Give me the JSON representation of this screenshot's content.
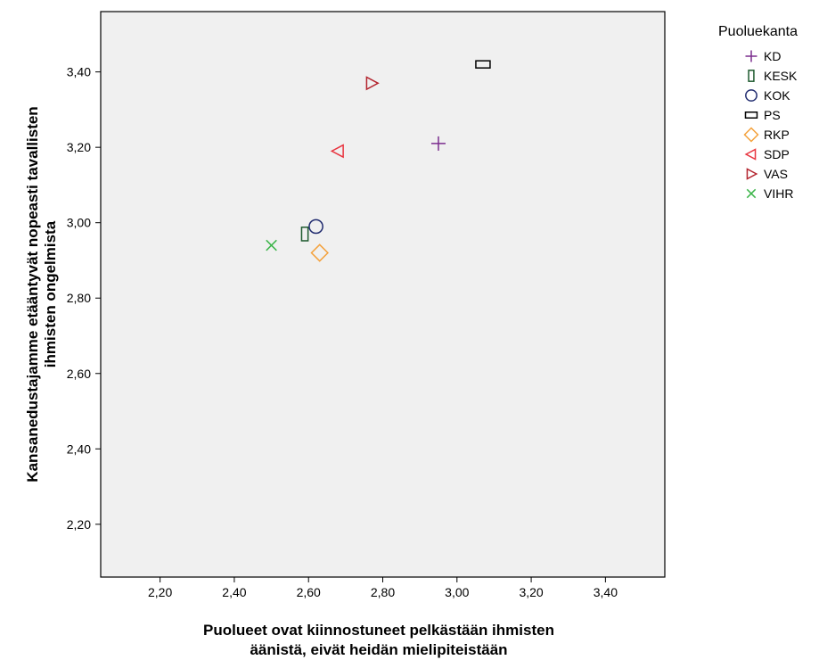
{
  "chart_data": {
    "type": "scatter",
    "xlabel": [
      "Puolueet ovat kiinnostuneet pelkästään ihmisten",
      "äänistä, eivät heidän mielipiteistään"
    ],
    "ylabel": [
      "Kansanedustajamme etääntyvät nopeasti tavallisten",
      "ihmisten ongelmista"
    ],
    "xlim": [
      2.04,
      3.56
    ],
    "ylim": [
      2.06,
      3.56
    ],
    "xticks": [
      2.2,
      2.4,
      2.6,
      2.8,
      3.0,
      3.2,
      3.4
    ],
    "xtick_labels": [
      "2,20",
      "2,40",
      "2,60",
      "2,80",
      "3,00",
      "3,20",
      "3,40"
    ],
    "yticks": [
      2.2,
      2.4,
      2.6,
      2.8,
      3.0,
      3.2,
      3.4
    ],
    "ytick_labels": [
      "2,20",
      "2,40",
      "2,60",
      "2,80",
      "3,00",
      "3,20",
      "3,40"
    ],
    "grid": false,
    "plot_background": "#f0f0f0",
    "legend": {
      "title": "Puoluekanta",
      "placement": "right"
    },
    "series": [
      {
        "name": "KD",
        "marker": "plus",
        "color": "#7b2d8e",
        "x": 2.95,
        "y": 3.21
      },
      {
        "name": "KESK",
        "marker": "tall-rect",
        "color": "#1e5a2e",
        "x": 2.59,
        "y": 2.97
      },
      {
        "name": "KOK",
        "marker": "circle",
        "color": "#1f2a6e",
        "x": 2.62,
        "y": 2.99
      },
      {
        "name": "PS",
        "marker": "wide-rect",
        "color": "#000000",
        "x": 3.07,
        "y": 3.42
      },
      {
        "name": "RKP",
        "marker": "diamond",
        "color": "#f4a13b",
        "x": 2.63,
        "y": 2.92
      },
      {
        "name": "SDP",
        "marker": "triangle-left",
        "color": "#e8343f",
        "x": 2.68,
        "y": 3.19
      },
      {
        "name": "VAS",
        "marker": "triangle-right",
        "color": "#b3242e",
        "x": 2.77,
        "y": 3.37
      },
      {
        "name": "VIHR",
        "marker": "cross",
        "color": "#3cb54a",
        "x": 2.5,
        "y": 2.94
      }
    ]
  }
}
